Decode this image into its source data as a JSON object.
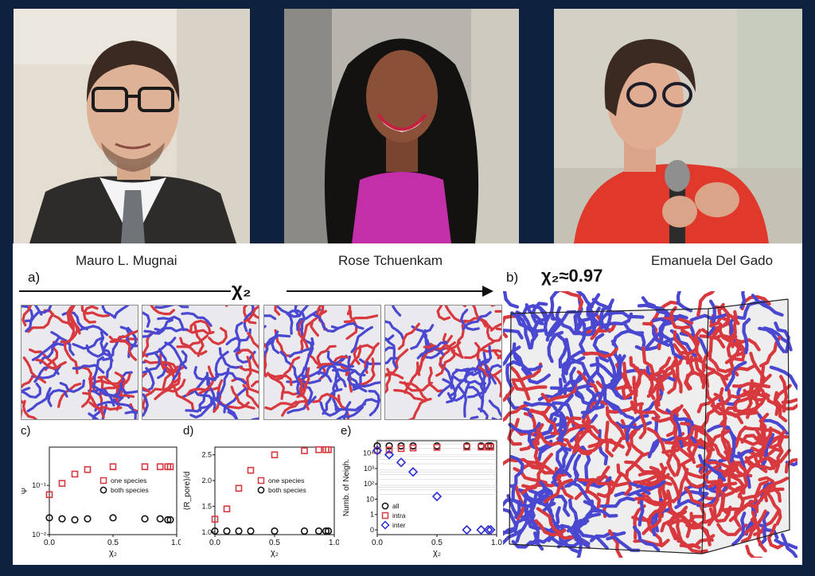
{
  "people": [
    {
      "name": "Mauro L. Mugnai"
    },
    {
      "name": "Rose Tchuenkam"
    },
    {
      "name": "Emanuela Del Gado"
    }
  ],
  "figure": {
    "panel_a_label": "a)",
    "panel_b_label": "b)",
    "axis_symbol": "χ₂",
    "panel_b_title": "χ₂≈0.97",
    "colors": {
      "species_red": "#d8393f",
      "species_blue": "#4a48d0",
      "frame": "#0e2240"
    }
  },
  "chart_data": [
    {
      "panel": "c)",
      "type": "scatter",
      "xlabel": "χ₂",
      "ylabel": "Ψ",
      "yscale": "log",
      "xlim": [
        0,
        1
      ],
      "ylim": [
        0.01,
        0.6
      ],
      "xticks": [
        "0.0",
        "0.5",
        "1.0"
      ],
      "yticks": [
        "10⁻²",
        "10⁻¹"
      ],
      "legend": "center-right",
      "series": [
        {
          "name": "one species",
          "color": "#d8393f",
          "marker": "square",
          "x": [
            0.0,
            0.1,
            0.2,
            0.3,
            0.5,
            0.75,
            0.87,
            0.93,
            0.95
          ],
          "y": [
            0.065,
            0.11,
            0.17,
            0.21,
            0.24,
            0.24,
            0.24,
            0.24,
            0.24
          ]
        },
        {
          "name": "both species",
          "color": "#111111",
          "marker": "circle",
          "x": [
            0.0,
            0.1,
            0.2,
            0.3,
            0.5,
            0.75,
            0.87,
            0.93,
            0.95
          ],
          "y": [
            0.022,
            0.021,
            0.02,
            0.021,
            0.022,
            0.021,
            0.021,
            0.02,
            0.02
          ]
        }
      ]
    },
    {
      "panel": "d)",
      "type": "scatter",
      "xlabel": "χ₂",
      "ylabel": "⟨R_pore⟩/d",
      "xlim": [
        0,
        1
      ],
      "ylim": [
        0.95,
        2.65
      ],
      "xticks": [
        "0.0",
        "0.5",
        "1.0"
      ],
      "yticks": [
        "1.0",
        "1.5",
        "2.0",
        "2.5"
      ],
      "legend": "center-right",
      "series": [
        {
          "name": "one species",
          "color": "#d8393f",
          "marker": "square",
          "x": [
            0.0,
            0.1,
            0.2,
            0.3,
            0.5,
            0.75,
            0.87,
            0.93,
            0.95
          ],
          "y": [
            1.25,
            1.45,
            1.85,
            2.2,
            2.5,
            2.58,
            2.6,
            2.6,
            2.6
          ]
        },
        {
          "name": "both species",
          "color": "#111111",
          "marker": "circle",
          "x": [
            0.0,
            0.1,
            0.2,
            0.3,
            0.5,
            0.75,
            0.87,
            0.93,
            0.95
          ],
          "y": [
            1.02,
            1.02,
            1.02,
            1.02,
            1.02,
            1.02,
            1.02,
            1.02,
            1.02
          ]
        }
      ]
    },
    {
      "panel": "e)",
      "type": "scatter",
      "xlabel": "χ₂",
      "ylabel": "Numb. of Neigh.",
      "yscale": "symlog",
      "xlim": [
        0,
        1
      ],
      "ylim": [
        0,
        100000
      ],
      "xticks": [
        "0.0",
        "0.5",
        "1.0"
      ],
      "yticks": [
        "0",
        "1",
        "10",
        "10²",
        "10³",
        "10⁴"
      ],
      "legend": "lower-left",
      "series": [
        {
          "name": "all",
          "color": "#111111",
          "marker": "circle",
          "x": [
            0.0,
            0.1,
            0.2,
            0.3,
            0.5,
            0.75,
            0.87,
            0.93,
            0.95
          ],
          "y": [
            30000,
            30000,
            30000,
            30000,
            30000,
            30000,
            30000,
            30000,
            30000
          ]
        },
        {
          "name": "intra",
          "color": "#d8393f",
          "marker": "square",
          "x": [
            0.0,
            0.1,
            0.2,
            0.3,
            0.5,
            0.75,
            0.87,
            0.93,
            0.95
          ],
          "y": [
            15000,
            16000,
            20000,
            22000,
            24000,
            25000,
            25000,
            25000,
            25000
          ]
        },
        {
          "name": "inter",
          "color": "#2d2fd0",
          "marker": "diamond",
          "x": [
            0.0,
            0.1,
            0.2,
            0.3,
            0.5,
            0.75,
            0.87,
            0.93,
            0.95
          ],
          "y": [
            15000,
            8000,
            2500,
            600,
            15,
            0,
            0,
            0,
            0
          ]
        }
      ]
    }
  ]
}
